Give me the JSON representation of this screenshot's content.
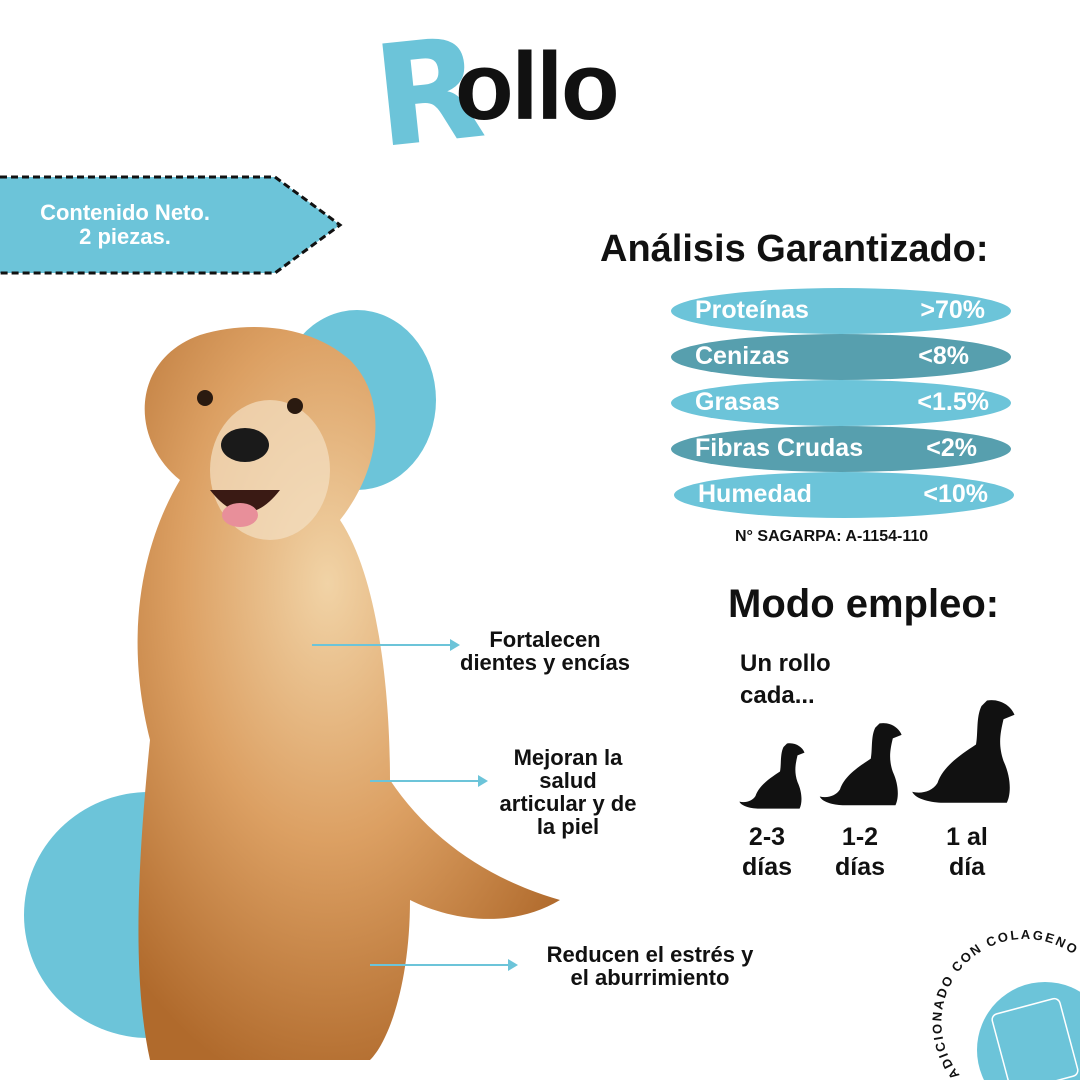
{
  "title": {
    "first_letter": "R",
    "rest": "ollo"
  },
  "content_tag": {
    "line1": "Contenido Neto.",
    "line2": "2 piezas."
  },
  "analysis": {
    "title": "Análisis Garantizado:",
    "rows": [
      {
        "name": "Proteínas",
        "value": ">70%"
      },
      {
        "name": "Cenizas",
        "value": "<8%"
      },
      {
        "name": "Grasas",
        "value": "<1.5%"
      },
      {
        "name": "Fibras Crudas",
        "value": "<2%"
      },
      {
        "name": "Humedad",
        "value": "<10%"
      }
    ],
    "sagarpa": "N° SAGARPA: A-1154-110"
  },
  "usage": {
    "title": "Modo empleo:",
    "intro_line1": "Un rollo",
    "intro_line2": "cada...",
    "frequencies": [
      {
        "line1": "2-3",
        "line2": "días",
        "dog_size": "small"
      },
      {
        "line1": "1-2",
        "line2": "días",
        "dog_size": "medium"
      },
      {
        "line1": "1 al",
        "line2": "día",
        "dog_size": "large"
      }
    ]
  },
  "benefits": [
    {
      "line1": "Fortalecen",
      "line2": "dientes y encías"
    },
    {
      "line1": "Mejoran la",
      "line2": "salud",
      "line3": "articular y de",
      "line4": "la piel"
    },
    {
      "line1": "Reducen el estrés y",
      "line2": "el aburrimiento"
    }
  ],
  "badge": {
    "text": "ADICIONADO CON COLÁGENO"
  },
  "colors": {
    "accent": "#6cc4d9",
    "accent_dark": "#579fae",
    "text": "#111111"
  }
}
